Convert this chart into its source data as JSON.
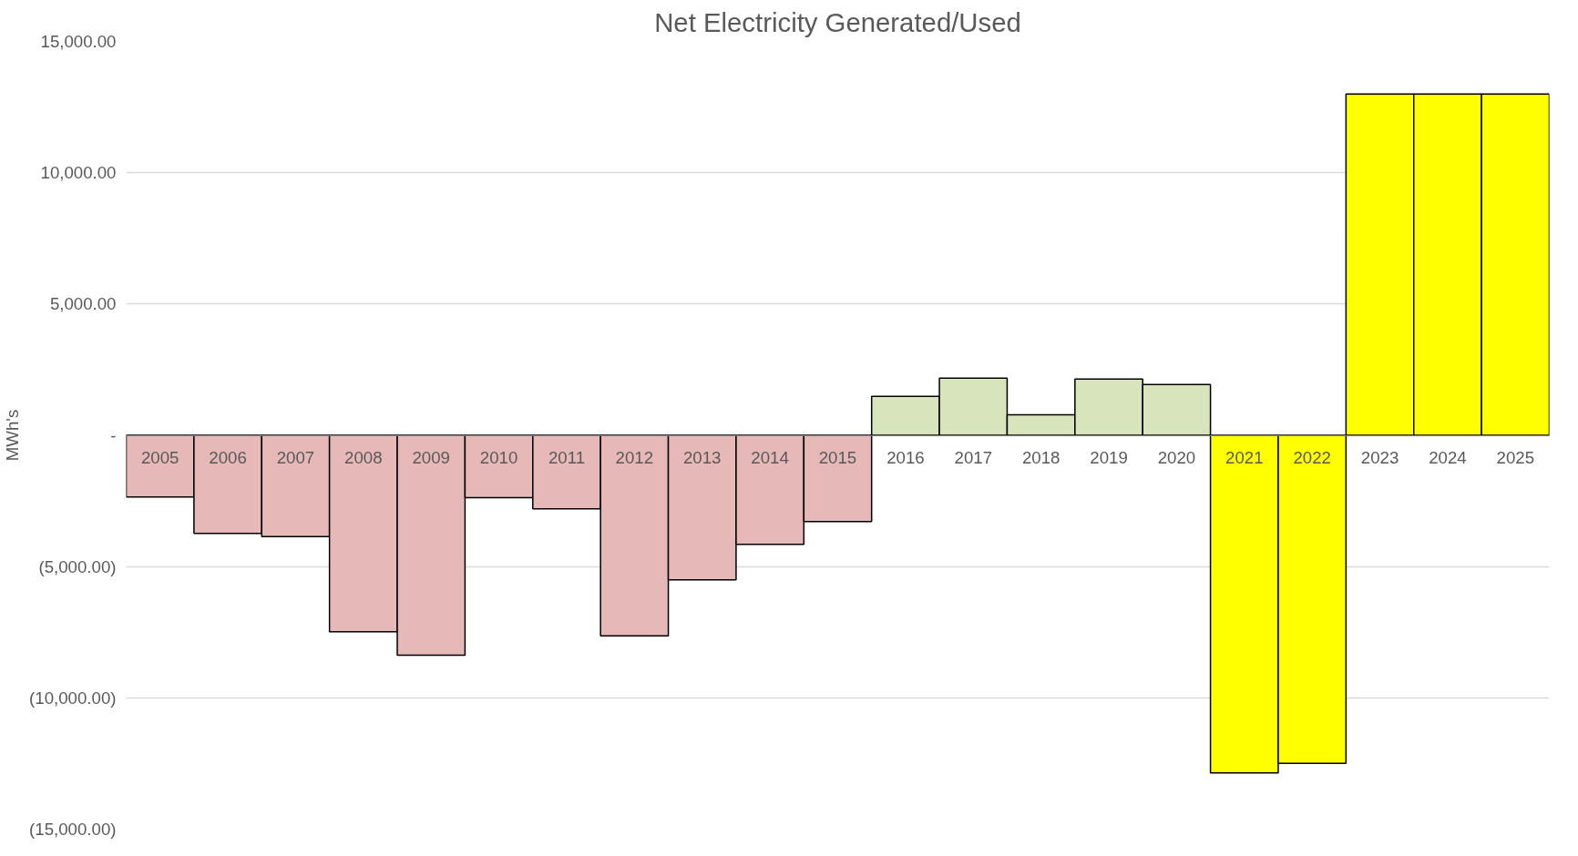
{
  "chart_data": {
    "type": "bar",
    "title": "Net Electricity Generated/Used",
    "ylabel": "MWh's",
    "categories": [
      "2005",
      "2006",
      "2007",
      "2008",
      "2009",
      "2010",
      "2011",
      "2012",
      "2013",
      "2014",
      "2015",
      "2016",
      "2017",
      "2018",
      "2019",
      "2020",
      "2021",
      "2022",
      "2023",
      "2024",
      "2025"
    ],
    "values": [
      -2350,
      -3740,
      -3860,
      -7480,
      -8380,
      -2380,
      -2800,
      -7640,
      -5510,
      -4150,
      -3290,
      1480,
      2180,
      780,
      2140,
      1930,
      -12860,
      -12490,
      13000,
      13000,
      13000
    ],
    "colors": [
      "#e6b8b7",
      "#e6b8b7",
      "#e6b8b7",
      "#e6b8b7",
      "#e6b8b7",
      "#e6b8b7",
      "#e6b8b7",
      "#e6b8b7",
      "#e6b8b7",
      "#e6b8b7",
      "#e6b8b7",
      "#d8e4bc",
      "#d8e4bc",
      "#d8e4bc",
      "#d8e4bc",
      "#d8e4bc",
      "#ffff00",
      "#ffff00",
      "#ffff00",
      "#ffff00",
      "#ffff00"
    ],
    "ylim": [
      -15000,
      15000
    ],
    "yticks": [
      {
        "value": -15000,
        "label": "(15,000.00)"
      },
      {
        "value": -10000,
        "label": "(10,000.00)"
      },
      {
        "value": -5000,
        "label": "(5,000.00)"
      },
      {
        "value": 0,
        "label": "-"
      },
      {
        "value": 5000,
        "label": "5,000.00"
      },
      {
        "value": 10000,
        "label": "10,000.00"
      },
      {
        "value": 15000,
        "label": "15,000.00"
      }
    ],
    "grid": "y"
  }
}
